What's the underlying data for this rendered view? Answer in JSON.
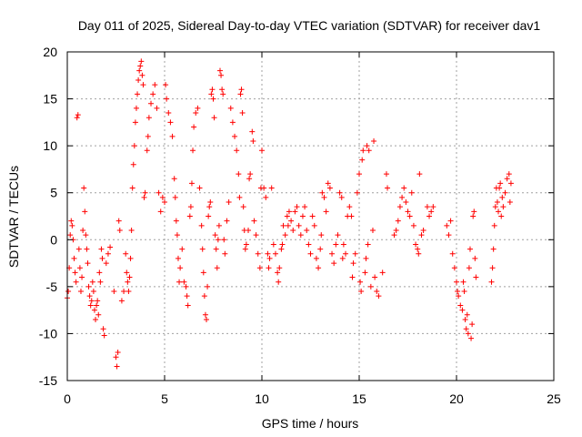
{
  "chart_data": {
    "type": "scatter",
    "title": "Day 011 of 2025, Sidereal Day-to-day VTEC variation (SDTVAR) for receiver dav1",
    "xlabel": "GPS time / hours",
    "ylabel": "SDTVAR / TECUs",
    "xlim": [
      0,
      25
    ],
    "ylim": [
      -15,
      20
    ],
    "xticks": [
      0,
      5,
      10,
      15,
      20,
      25
    ],
    "yticks": [
      -15,
      -10,
      -5,
      0,
      5,
      10,
      15,
      20
    ],
    "xtick_labels": [
      "0",
      "5",
      "10",
      "15",
      "20",
      "25"
    ],
    "ytick_labels": [
      "-15",
      "-10",
      "-5",
      "0",
      "5",
      "10",
      "15",
      "20"
    ],
    "grid": true,
    "marker": "+",
    "color": "#ff0000",
    "series": [
      {
        "name": "SDTVAR",
        "points": [
          [
            0.0,
            -6.2
          ],
          [
            0.05,
            -5.5
          ],
          [
            0.1,
            -3.0
          ],
          [
            0.15,
            0.5
          ],
          [
            0.2,
            2.0
          ],
          [
            0.25,
            1.5
          ],
          [
            0.3,
            0.0
          ],
          [
            0.35,
            -2.0
          ],
          [
            0.4,
            -3.5
          ],
          [
            0.45,
            -4.5
          ],
          [
            0.5,
            13.0
          ],
          [
            0.55,
            13.3
          ],
          [
            0.6,
            -1.0
          ],
          [
            0.65,
            -3.0
          ],
          [
            0.7,
            -5.5
          ],
          [
            0.75,
            -4.0
          ],
          [
            0.8,
            1.0
          ],
          [
            0.85,
            5.5
          ],
          [
            0.9,
            3.0
          ],
          [
            0.95,
            0.5
          ],
          [
            1.0,
            -1.0
          ],
          [
            1.05,
            -2.5
          ],
          [
            1.1,
            -5.0
          ],
          [
            1.15,
            -6.0
          ],
          [
            1.2,
            -7.0
          ],
          [
            1.25,
            -6.5
          ],
          [
            1.3,
            -4.5
          ],
          [
            1.35,
            -5.5
          ],
          [
            1.4,
            -7.5
          ],
          [
            1.45,
            -8.5
          ],
          [
            1.5,
            -7.0
          ],
          [
            1.55,
            -6.5
          ],
          [
            1.6,
            -8.0
          ],
          [
            1.65,
            -3.5
          ],
          [
            1.7,
            -4.5
          ],
          [
            1.75,
            -1.0
          ],
          [
            1.8,
            -2.0
          ],
          [
            1.85,
            -9.5
          ],
          [
            1.9,
            -10.2
          ],
          [
            2.0,
            -2.5
          ],
          [
            2.1,
            -1.5
          ],
          [
            2.2,
            -0.8
          ],
          [
            2.4,
            -5.5
          ],
          [
            2.5,
            -12.5
          ],
          [
            2.55,
            -13.5
          ],
          [
            2.6,
            -12.0
          ],
          [
            2.65,
            2.0
          ],
          [
            2.7,
            1.0
          ],
          [
            2.8,
            -6.5
          ],
          [
            2.9,
            -5.5
          ],
          [
            3.0,
            -1.5
          ],
          [
            3.05,
            -3.5
          ],
          [
            3.1,
            -4.5
          ],
          [
            3.15,
            -5.5
          ],
          [
            3.2,
            -4.0
          ],
          [
            3.25,
            -2.0
          ],
          [
            3.3,
            1.0
          ],
          [
            3.35,
            5.5
          ],
          [
            3.4,
            8.0
          ],
          [
            3.45,
            10.0
          ],
          [
            3.5,
            12.5
          ],
          [
            3.55,
            14.0
          ],
          [
            3.6,
            15.5
          ],
          [
            3.65,
            17.0
          ],
          [
            3.7,
            18.0
          ],
          [
            3.75,
            18.5
          ],
          [
            3.8,
            19.0
          ],
          [
            3.85,
            17.5
          ],
          [
            3.9,
            16.5
          ],
          [
            3.95,
            4.5
          ],
          [
            4.0,
            5.0
          ],
          [
            4.1,
            9.5
          ],
          [
            4.15,
            11.0
          ],
          [
            4.2,
            13.0
          ],
          [
            4.3,
            14.5
          ],
          [
            4.4,
            15.5
          ],
          [
            4.5,
            16.5
          ],
          [
            4.6,
            14.0
          ],
          [
            4.7,
            5.0
          ],
          [
            4.8,
            3.0
          ],
          [
            4.9,
            4.5
          ],
          [
            5.0,
            4.0
          ],
          [
            5.05,
            16.5
          ],
          [
            5.1,
            15.0
          ],
          [
            5.2,
            13.5
          ],
          [
            5.3,
            12.5
          ],
          [
            5.4,
            11.0
          ],
          [
            5.5,
            6.5
          ],
          [
            5.55,
            4.5
          ],
          [
            5.6,
            2.0
          ],
          [
            5.65,
            0.5
          ],
          [
            5.7,
            -2.0
          ],
          [
            5.75,
            -4.5
          ],
          [
            5.8,
            -3.0
          ],
          [
            5.9,
            -1.0
          ],
          [
            6.0,
            -4.5
          ],
          [
            6.1,
            -5.0
          ],
          [
            6.15,
            -6.0
          ],
          [
            6.2,
            -7.0
          ],
          [
            6.3,
            2.5
          ],
          [
            6.35,
            3.5
          ],
          [
            6.4,
            6.0
          ],
          [
            6.45,
            9.5
          ],
          [
            6.5,
            12.0
          ],
          [
            6.6,
            13.5
          ],
          [
            6.7,
            14.0
          ],
          [
            6.8,
            5.5
          ],
          [
            6.9,
            1.5
          ],
          [
            6.95,
            -1.0
          ],
          [
            7.0,
            -3.5
          ],
          [
            7.05,
            -6.0
          ],
          [
            7.1,
            -8.0
          ],
          [
            7.15,
            -8.5
          ],
          [
            7.2,
            -5.0
          ],
          [
            7.25,
            2.5
          ],
          [
            7.3,
            3.5
          ],
          [
            7.35,
            4.0
          ],
          [
            7.4,
            15.5
          ],
          [
            7.45,
            16.0
          ],
          [
            7.5,
            15.0
          ],
          [
            7.55,
            13.0
          ],
          [
            7.6,
            0.5
          ],
          [
            7.65,
            -1.0
          ],
          [
            7.7,
            -3.0
          ],
          [
            7.75,
            0.0
          ],
          [
            7.8,
            1.5
          ],
          [
            7.85,
            18.0
          ],
          [
            7.9,
            17.5
          ],
          [
            7.95,
            16.0
          ],
          [
            8.0,
            15.5
          ],
          [
            8.05,
            0.0
          ],
          [
            8.1,
            -1.5
          ],
          [
            8.2,
            2.0
          ],
          [
            8.3,
            4.0
          ],
          [
            8.4,
            14.0
          ],
          [
            8.5,
            12.5
          ],
          [
            8.6,
            11.0
          ],
          [
            8.7,
            9.5
          ],
          [
            8.8,
            7.0
          ],
          [
            8.85,
            4.5
          ],
          [
            8.9,
            15.5
          ],
          [
            8.95,
            16.0
          ],
          [
            9.0,
            13.5
          ],
          [
            9.05,
            3.5
          ],
          [
            9.1,
            1.0
          ],
          [
            9.15,
            -1.0
          ],
          [
            9.2,
            -0.5
          ],
          [
            9.3,
            1.0
          ],
          [
            9.35,
            6.5
          ],
          [
            9.4,
            7.0
          ],
          [
            9.5,
            11.5
          ],
          [
            9.55,
            10.5
          ],
          [
            9.6,
            2.0
          ],
          [
            9.7,
            0.5
          ],
          [
            9.8,
            -1.5
          ],
          [
            9.9,
            -3.0
          ],
          [
            9.95,
            5.5
          ],
          [
            10.0,
            9.5
          ],
          [
            10.1,
            5.5
          ],
          [
            10.2,
            4.5
          ],
          [
            10.3,
            -1.5
          ],
          [
            10.35,
            -3.0
          ],
          [
            10.4,
            -2.0
          ],
          [
            10.5,
            5.5
          ],
          [
            10.6,
            -0.5
          ],
          [
            10.7,
            -1.5
          ],
          [
            10.8,
            -3.5
          ],
          [
            10.85,
            -4.5
          ],
          [
            10.9,
            -3.0
          ],
          [
            11.0,
            -1.0
          ],
          [
            11.05,
            -0.5
          ],
          [
            11.1,
            1.5
          ],
          [
            11.2,
            0.5
          ],
          [
            11.3,
            2.5
          ],
          [
            11.35,
            1.5
          ],
          [
            11.4,
            3.0
          ],
          [
            11.5,
            2.0
          ],
          [
            11.6,
            1.0
          ],
          [
            11.7,
            3.0
          ],
          [
            11.8,
            3.5
          ],
          [
            11.9,
            1.5
          ],
          [
            12.0,
            0.5
          ],
          [
            12.1,
            2.5
          ],
          [
            12.2,
            3.5
          ],
          [
            12.3,
            1.0
          ],
          [
            12.4,
            -0.5
          ],
          [
            12.5,
            -1.5
          ],
          [
            12.6,
            2.5
          ],
          [
            12.7,
            1.5
          ],
          [
            12.8,
            -2.0
          ],
          [
            12.9,
            -3.0
          ],
          [
            13.0,
            -1.0
          ],
          [
            13.05,
            0.5
          ],
          [
            13.1,
            5.0
          ],
          [
            13.2,
            4.5
          ],
          [
            13.3,
            3.0
          ],
          [
            13.4,
            6.0
          ],
          [
            13.5,
            5.5
          ],
          [
            13.6,
            -1.5
          ],
          [
            13.7,
            -2.5
          ],
          [
            13.8,
            -0.5
          ],
          [
            13.9,
            0.5
          ],
          [
            14.0,
            5.0
          ],
          [
            14.1,
            4.5
          ],
          [
            14.15,
            -2.0
          ],
          [
            14.2,
            -0.5
          ],
          [
            14.3,
            -1.5
          ],
          [
            14.4,
            2.5
          ],
          [
            14.5,
            3.5
          ],
          [
            14.6,
            2.5
          ],
          [
            14.65,
            -4.0
          ],
          [
            14.7,
            -2.5
          ],
          [
            14.8,
            -1.5
          ],
          [
            14.9,
            5.0
          ],
          [
            15.0,
            7.0
          ],
          [
            15.05,
            -4.5
          ],
          [
            15.1,
            -5.5
          ],
          [
            15.15,
            8.5
          ],
          [
            15.2,
            9.5
          ],
          [
            15.3,
            -3.5
          ],
          [
            15.35,
            -2.0
          ],
          [
            15.4,
            10.0
          ],
          [
            15.45,
            -0.5
          ],
          [
            15.5,
            9.5
          ],
          [
            15.6,
            -5.0
          ],
          [
            15.7,
            1.0
          ],
          [
            15.75,
            10.5
          ],
          [
            15.8,
            -4.0
          ],
          [
            15.9,
            -5.5
          ],
          [
            16.0,
            -6.0
          ],
          [
            16.2,
            -3.5
          ],
          [
            16.4,
            7.0
          ],
          [
            16.45,
            5.5
          ],
          [
            16.8,
            0.5
          ],
          [
            16.9,
            1.0
          ],
          [
            17.0,
            2.0
          ],
          [
            17.1,
            3.5
          ],
          [
            17.2,
            4.5
          ],
          [
            17.3,
            5.5
          ],
          [
            17.4,
            4.0
          ],
          [
            17.5,
            3.0
          ],
          [
            17.6,
            2.5
          ],
          [
            17.7,
            5.0
          ],
          [
            17.8,
            1.5
          ],
          [
            17.9,
            -0.5
          ],
          [
            18.0,
            -1.0
          ],
          [
            18.05,
            -1.5
          ],
          [
            18.1,
            7.0
          ],
          [
            18.2,
            0.5
          ],
          [
            18.3,
            1.0
          ],
          [
            18.5,
            3.5
          ],
          [
            18.6,
            2.5
          ],
          [
            18.7,
            3.0
          ],
          [
            18.8,
            3.5
          ],
          [
            19.5,
            1.5
          ],
          [
            19.6,
            0.5
          ],
          [
            19.7,
            2.0
          ],
          [
            19.8,
            -1.5
          ],
          [
            19.9,
            -3.0
          ],
          [
            20.0,
            -4.5
          ],
          [
            20.05,
            -5.5
          ],
          [
            20.1,
            -6.0
          ],
          [
            20.2,
            -7.0
          ],
          [
            20.3,
            -7.5
          ],
          [
            20.35,
            -4.5
          ],
          [
            20.4,
            -5.5
          ],
          [
            20.45,
            -8.5
          ],
          [
            20.5,
            -9.5
          ],
          [
            20.55,
            -8.0
          ],
          [
            20.6,
            -10.0
          ],
          [
            20.65,
            -3.0
          ],
          [
            20.7,
            -1.0
          ],
          [
            20.75,
            -10.5
          ],
          [
            20.8,
            -9.0
          ],
          [
            20.85,
            2.5
          ],
          [
            20.9,
            3.0
          ],
          [
            20.95,
            -2.0
          ],
          [
            21.0,
            -4.0
          ],
          [
            21.8,
            -4.5
          ],
          [
            21.85,
            -3.0
          ],
          [
            21.9,
            -1.0
          ],
          [
            21.95,
            1.5
          ],
          [
            22.0,
            3.5
          ],
          [
            22.05,
            5.5
          ],
          [
            22.1,
            4.0
          ],
          [
            22.15,
            3.0
          ],
          [
            22.2,
            5.5
          ],
          [
            22.25,
            6.0
          ],
          [
            22.3,
            2.5
          ],
          [
            22.35,
            4.5
          ],
          [
            22.4,
            3.5
          ],
          [
            22.5,
            5.0
          ],
          [
            22.6,
            6.5
          ],
          [
            22.7,
            7.0
          ],
          [
            22.75,
            4.0
          ],
          [
            22.8,
            6.0
          ]
        ]
      }
    ]
  }
}
